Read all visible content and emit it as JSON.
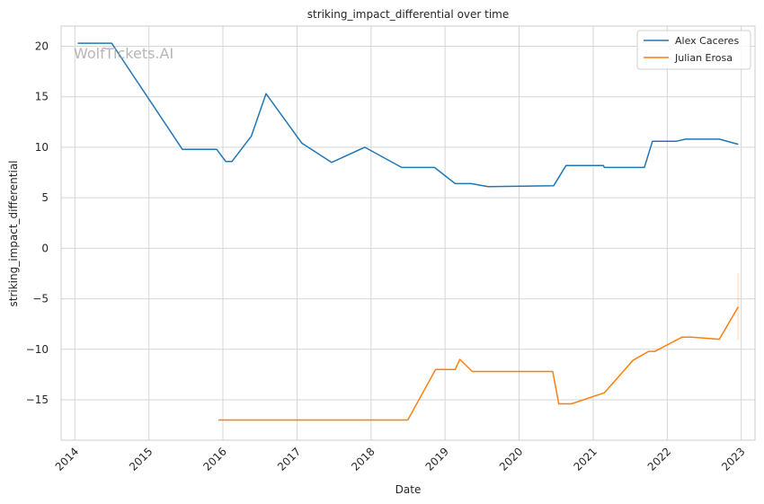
{
  "chart_data": {
    "type": "line",
    "title": "striking_impact_differential over time",
    "xlabel": "Date",
    "ylabel": "striking_impact_differential",
    "watermark": "WolfTickets.AI",
    "x_ticks": [
      "2014",
      "2015",
      "2016",
      "2017",
      "2018",
      "2019",
      "2020",
      "2021",
      "2022",
      "2023"
    ],
    "y_ticks": [
      20,
      15,
      10,
      5,
      0,
      -5,
      -10,
      -15
    ],
    "y_tick_labels": [
      "20",
      "15",
      "10",
      "5",
      "0",
      "−5",
      "−10",
      "−15"
    ],
    "xlim": [
      "2013-10-25",
      "2023-03-10"
    ],
    "ylim": [
      -19,
      22
    ],
    "grid": true,
    "legend_position": "top-right",
    "series": [
      {
        "name": "Alex Caceres",
        "color": "#1f77b4",
        "points": [
          [
            "2014-01-15",
            20.3
          ],
          [
            "2014-07-01",
            20.3
          ],
          [
            "2015-06-15",
            9.8
          ],
          [
            "2015-12-01",
            9.8
          ],
          [
            "2016-01-15",
            8.6
          ],
          [
            "2016-02-15",
            8.6
          ],
          [
            "2016-05-20",
            11.1
          ],
          [
            "2016-08-01",
            15.3
          ],
          [
            "2017-01-25",
            10.4
          ],
          [
            "2017-06-20",
            8.5
          ],
          [
            "2017-12-01",
            10.0
          ],
          [
            "2018-06-01",
            8.0
          ],
          [
            "2018-11-10",
            8.0
          ],
          [
            "2019-02-20",
            6.4
          ],
          [
            "2019-05-10",
            6.4
          ],
          [
            "2019-08-01",
            6.1
          ],
          [
            "2020-06-20",
            6.2
          ],
          [
            "2020-08-20",
            8.2
          ],
          [
            "2021-02-20",
            8.2
          ],
          [
            "2021-02-25",
            8.0
          ],
          [
            "2021-09-10",
            8.0
          ],
          [
            "2021-10-20",
            10.6
          ],
          [
            "2022-02-15",
            10.6
          ],
          [
            "2022-04-01",
            10.8
          ],
          [
            "2022-09-15",
            10.8
          ],
          [
            "2022-12-17",
            10.3
          ]
        ]
      },
      {
        "name": "Julian Erosa",
        "color": "#ff7f0e",
        "points": [
          [
            "2015-12-10",
            -17.0
          ],
          [
            "2018-07-01",
            -17.0
          ],
          [
            "2018-11-15",
            -12.0
          ],
          [
            "2019-02-20",
            -12.0
          ],
          [
            "2019-03-15",
            -11.0
          ],
          [
            "2019-05-15",
            -12.2
          ],
          [
            "2020-06-15",
            -12.2
          ],
          [
            "2020-07-15",
            -15.4
          ],
          [
            "2020-09-15",
            -15.4
          ],
          [
            "2021-02-25",
            -14.3
          ],
          [
            "2021-07-15",
            -11.1
          ],
          [
            "2021-10-01",
            -10.2
          ],
          [
            "2021-11-01",
            -10.2
          ],
          [
            "2022-03-15",
            -8.8
          ],
          [
            "2022-05-01",
            -8.8
          ],
          [
            "2022-09-15",
            -9.0
          ],
          [
            "2022-12-17",
            -5.8
          ]
        ],
        "band": {
          "x": "2022-12-17",
          "low": -9.1,
          "high": -2.5
        }
      }
    ]
  }
}
